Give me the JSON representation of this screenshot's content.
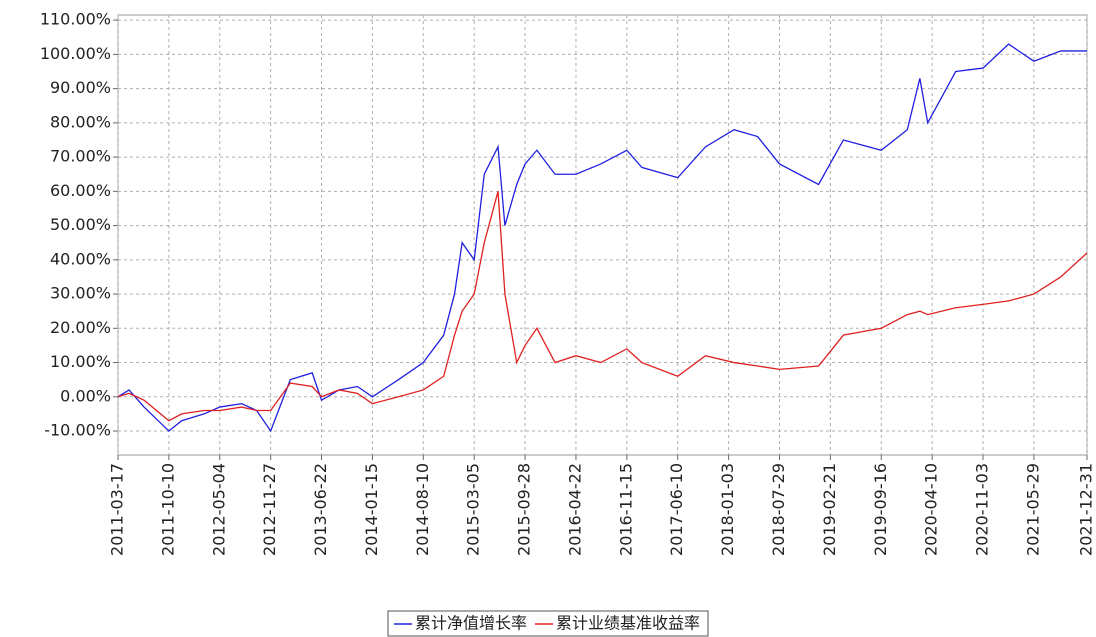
{
  "chart_data": {
    "type": "line",
    "x": [
      "2011-03-17",
      "2011-05-01",
      "2011-07-01",
      "2011-10-10",
      "2011-12-01",
      "2012-03-01",
      "2012-05-04",
      "2012-08-01",
      "2012-10-01",
      "2012-11-27",
      "2013-02-15",
      "2013-05-15",
      "2013-06-22",
      "2013-09-01",
      "2013-11-15",
      "2014-01-15",
      "2014-05-01",
      "2014-08-10",
      "2014-11-01",
      "2014-12-15",
      "2015-01-15",
      "2015-03-05",
      "2015-04-15",
      "2015-06-10",
      "2015-07-08",
      "2015-08-25",
      "2015-09-28",
      "2015-11-15",
      "2016-01-28",
      "2016-04-22",
      "2016-08-01",
      "2016-11-15",
      "2017-01-15",
      "2017-06-10",
      "2017-10-01",
      "2018-01-25",
      "2018-05-01",
      "2018-07-29",
      "2019-01-04",
      "2019-04-15",
      "2019-09-16",
      "2019-12-31",
      "2020-02-20",
      "2020-03-23",
      "2020-07-15",
      "2020-11-03",
      "2021-02-15",
      "2021-05-29",
      "2021-09-15",
      "2021-12-31"
    ],
    "series": [
      {
        "name": "累计净值增长率",
        "color": "#2020e0",
        "values": [
          0,
          2,
          -3,
          -10,
          -7,
          -5,
          -3,
          -2,
          -4,
          -10,
          5,
          7,
          -1,
          2,
          3,
          0,
          5,
          10,
          18,
          30,
          45,
          40,
          65,
          73,
          50,
          62,
          68,
          72,
          65,
          65,
          68,
          72,
          67,
          64,
          73,
          78,
          76,
          68,
          62,
          75,
          72,
          78,
          93,
          80,
          95,
          96,
          103,
          98,
          101,
          101
        ]
      },
      {
        "name": "累计业绩基准收益率",
        "color": "#e02020",
        "values": [
          0,
          1,
          -1,
          -7,
          -5,
          -4,
          -4,
          -3,
          -4,
          -4,
          4,
          3,
          0,
          2,
          1,
          -2,
          0,
          2,
          6,
          18,
          25,
          30,
          45,
          60,
          30,
          10,
          15,
          20,
          10,
          12,
          10,
          14,
          10,
          6,
          12,
          10,
          9,
          8,
          9,
          18,
          20,
          24,
          25,
          24,
          26,
          27,
          28,
          30,
          35,
          42
        ]
      }
    ],
    "xlim": [
      "2011-03-17",
      "2021-12-31"
    ],
    "xticks": [
      "2011-03-17",
      "2011-10-10",
      "2012-05-04",
      "2012-11-27",
      "2013-06-22",
      "2014-01-15",
      "2014-08-10",
      "2015-03-05",
      "2015-09-28",
      "2016-04-22",
      "2016-11-15",
      "2017-06-10",
      "2018-01-03",
      "2018-07-29",
      "2019-02-21",
      "2019-09-16",
      "2020-04-10",
      "2020-11-03",
      "2021-05-29",
      "2021-12-31"
    ],
    "ylim": [
      -17,
      111.5
    ],
    "yticks": [
      {
        "value": -10,
        "label": "-10.00%"
      },
      {
        "value": 0,
        "label": "0.00%"
      },
      {
        "value": 10,
        "label": "10.00%"
      },
      {
        "value": 20,
        "label": "20.00%"
      },
      {
        "value": 30,
        "label": "30.00%"
      },
      {
        "value": 40,
        "label": "40.00%"
      },
      {
        "value": 50,
        "label": "50.00%"
      },
      {
        "value": 60,
        "label": "60.00%"
      },
      {
        "value": 70,
        "label": "70.00%"
      },
      {
        "value": 80,
        "label": "80.00%"
      },
      {
        "value": 90,
        "label": "90.00%"
      },
      {
        "value": 100,
        "label": "100.00%"
      },
      {
        "value": 110,
        "label": "110.00%"
      }
    ],
    "grid": true,
    "legend": "bottom"
  }
}
